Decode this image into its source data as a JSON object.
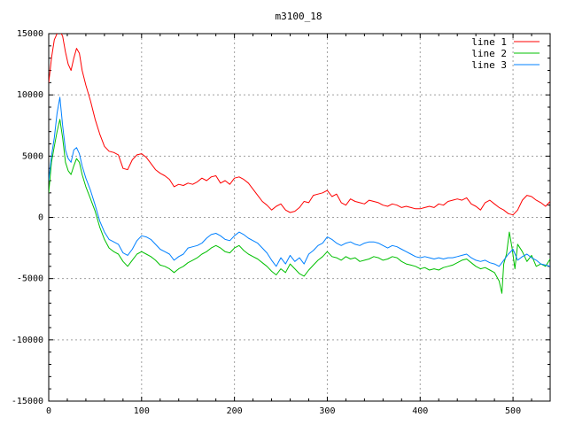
{
  "chart_data": {
    "type": "line",
    "title": "m3100_18",
    "xlim": [
      0,
      540
    ],
    "ylim": [
      -15000,
      15000
    ],
    "xticks": [
      0,
      100,
      200,
      300,
      400,
      500
    ],
    "yticks": [
      -15000,
      -10000,
      -5000,
      0,
      5000,
      10000,
      15000
    ],
    "grid": true,
    "legend_position": "top-right",
    "series": [
      {
        "name": "line 1",
        "color": "#ff0000",
        "x": [
          0,
          3,
          6,
          9,
          12,
          15,
          18,
          21,
          24,
          27,
          30,
          33,
          36,
          40,
          45,
          50,
          55,
          60,
          65,
          70,
          75,
          80,
          85,
          90,
          95,
          100,
          105,
          110,
          115,
          120,
          125,
          130,
          135,
          140,
          145,
          150,
          155,
          160,
          165,
          170,
          175,
          180,
          185,
          190,
          195,
          200,
          205,
          210,
          215,
          220,
          225,
          230,
          235,
          240,
          245,
          250,
          255,
          260,
          265,
          270,
          275,
          280,
          285,
          290,
          295,
          300,
          305,
          310,
          315,
          320,
          325,
          330,
          335,
          340,
          345,
          350,
          355,
          360,
          365,
          370,
          375,
          380,
          385,
          390,
          395,
          400,
          405,
          410,
          415,
          420,
          425,
          430,
          435,
          440,
          445,
          450,
          455,
          460,
          465,
          470,
          475,
          480,
          485,
          490,
          495,
          500,
          505,
          510,
          515,
          520,
          525,
          530,
          535,
          540
        ],
        "y": [
          11000,
          13000,
          14500,
          15000,
          15200,
          14800,
          13500,
          12500,
          12000,
          13000,
          13800,
          13400,
          12000,
          10800,
          9500,
          8000,
          6800,
          5800,
          5400,
          5300,
          5100,
          4000,
          3900,
          4700,
          5100,
          5200,
          4900,
          4400,
          3900,
          3600,
          3400,
          3100,
          2500,
          2700,
          2600,
          2800,
          2700,
          2900,
          3200,
          3000,
          3300,
          3400,
          2800,
          3000,
          2700,
          3200,
          3300,
          3100,
          2800,
          2300,
          1800,
          1300,
          1000,
          600,
          900,
          1100,
          600,
          400,
          500,
          800,
          1300,
          1200,
          1800,
          1900,
          2000,
          2200,
          1700,
          1900,
          1200,
          1000,
          1500,
          1300,
          1200,
          1100,
          1400,
          1300,
          1200,
          1000,
          900,
          1100,
          1000,
          800,
          900,
          800,
          700,
          700,
          800,
          900,
          800,
          1100,
          1000,
          1300,
          1400,
          1500,
          1400,
          1600,
          1100,
          900,
          600,
          1200,
          1400,
          1100,
          800,
          600,
          300,
          200,
          600,
          1400,
          1800,
          1700,
          1400,
          1200,
          900,
          1300
        ]
      },
      {
        "name": "line 2",
        "color": "#00c000",
        "x": [
          0,
          3,
          6,
          9,
          12,
          15,
          18,
          21,
          24,
          27,
          30,
          33,
          36,
          40,
          45,
          50,
          55,
          60,
          65,
          70,
          75,
          80,
          85,
          90,
          95,
          100,
          105,
          110,
          115,
          120,
          125,
          130,
          135,
          140,
          145,
          150,
          155,
          160,
          165,
          170,
          175,
          180,
          185,
          190,
          195,
          200,
          205,
          210,
          215,
          220,
          225,
          230,
          235,
          240,
          245,
          250,
          255,
          260,
          265,
          270,
          275,
          280,
          285,
          290,
          295,
          300,
          305,
          310,
          315,
          320,
          325,
          330,
          335,
          340,
          345,
          350,
          355,
          360,
          365,
          370,
          375,
          380,
          385,
          390,
          395,
          400,
          405,
          410,
          415,
          420,
          425,
          430,
          435,
          440,
          445,
          450,
          455,
          460,
          465,
          470,
          475,
          480,
          485,
          488,
          490,
          493,
          496,
          499,
          502,
          505,
          510,
          515,
          520,
          525,
          530,
          535,
          540
        ],
        "y": [
          2000,
          4500,
          5800,
          7000,
          8000,
          6500,
          4500,
          3800,
          3500,
          4200,
          4800,
          4500,
          3500,
          2500,
          1500,
          500,
          -800,
          -1800,
          -2500,
          -2800,
          -3000,
          -3600,
          -4000,
          -3500,
          -3000,
          -2800,
          -3000,
          -3200,
          -3500,
          -3900,
          -4000,
          -4200,
          -4500,
          -4200,
          -4000,
          -3700,
          -3500,
          -3300,
          -3000,
          -2800,
          -2500,
          -2300,
          -2500,
          -2800,
          -2900,
          -2500,
          -2300,
          -2700,
          -3000,
          -3200,
          -3400,
          -3700,
          -4000,
          -4400,
          -4700,
          -4200,
          -4500,
          -3800,
          -4200,
          -4600,
          -4800,
          -4300,
          -3900,
          -3500,
          -3200,
          -2800,
          -3200,
          -3300,
          -3500,
          -3200,
          -3400,
          -3300,
          -3600,
          -3500,
          -3400,
          -3200,
          -3300,
          -3500,
          -3400,
          -3200,
          -3300,
          -3600,
          -3800,
          -3900,
          -4000,
          -4200,
          -4100,
          -4300,
          -4200,
          -4300,
          -4100,
          -4000,
          -3900,
          -3700,
          -3500,
          -3400,
          -3700,
          -4000,
          -4200,
          -4100,
          -4300,
          -4500,
          -5200,
          -6200,
          -3800,
          -3000,
          -1200,
          -2500,
          -4200,
          -2200,
          -2800,
          -3600,
          -3100,
          -4000,
          -3800,
          -4000,
          -3400
        ]
      },
      {
        "name": "line 3",
        "color": "#0080ff",
        "x": [
          0,
          3,
          6,
          9,
          12,
          15,
          18,
          21,
          24,
          27,
          30,
          33,
          36,
          40,
          45,
          50,
          55,
          60,
          65,
          70,
          75,
          80,
          85,
          90,
          95,
          100,
          105,
          110,
          115,
          120,
          125,
          130,
          135,
          140,
          145,
          150,
          155,
          160,
          165,
          170,
          175,
          180,
          185,
          190,
          195,
          200,
          205,
          210,
          215,
          220,
          225,
          230,
          235,
          240,
          245,
          250,
          255,
          260,
          265,
          270,
          275,
          280,
          285,
          290,
          295,
          300,
          305,
          310,
          315,
          320,
          325,
          330,
          335,
          340,
          345,
          350,
          355,
          360,
          365,
          370,
          375,
          380,
          385,
          390,
          395,
          400,
          405,
          410,
          415,
          420,
          425,
          430,
          435,
          440,
          445,
          450,
          455,
          460,
          465,
          470,
          475,
          480,
          485,
          490,
          495,
          500,
          505,
          510,
          515,
          520,
          525,
          530,
          535,
          540
        ],
        "y": [
          3000,
          5000,
          6500,
          8500,
          9800,
          7500,
          5500,
          4800,
          4500,
          5500,
          5700,
          5200,
          4200,
          3200,
          2200,
          1000,
          -300,
          -1200,
          -1800,
          -2000,
          -2200,
          -2900,
          -3100,
          -2600,
          -1900,
          -1500,
          -1600,
          -1800,
          -2200,
          -2600,
          -2800,
          -3000,
          -3500,
          -3200,
          -3000,
          -2500,
          -2400,
          -2300,
          -2100,
          -1700,
          -1400,
          -1300,
          -1500,
          -1800,
          -1900,
          -1500,
          -1200,
          -1400,
          -1700,
          -1900,
          -2100,
          -2500,
          -2900,
          -3500,
          -4000,
          -3300,
          -3800,
          -3100,
          -3600,
          -3300,
          -3800,
          -3000,
          -2700,
          -2300,
          -2100,
          -1600,
          -1800,
          -2100,
          -2300,
          -2100,
          -2000,
          -2200,
          -2300,
          -2100,
          -2000,
          -2000,
          -2100,
          -2300,
          -2500,
          -2300,
          -2400,
          -2600,
          -2800,
          -3000,
          -3200,
          -3300,
          -3200,
          -3300,
          -3400,
          -3300,
          -3400,
          -3300,
          -3300,
          -3200,
          -3100,
          -3000,
          -3300,
          -3500,
          -3600,
          -3500,
          -3700,
          -3800,
          -4000,
          -3500,
          -3000,
          -2600,
          -3500,
          -3200,
          -3000,
          -3300,
          -3500,
          -3800,
          -3900,
          -4000
        ]
      }
    ]
  }
}
